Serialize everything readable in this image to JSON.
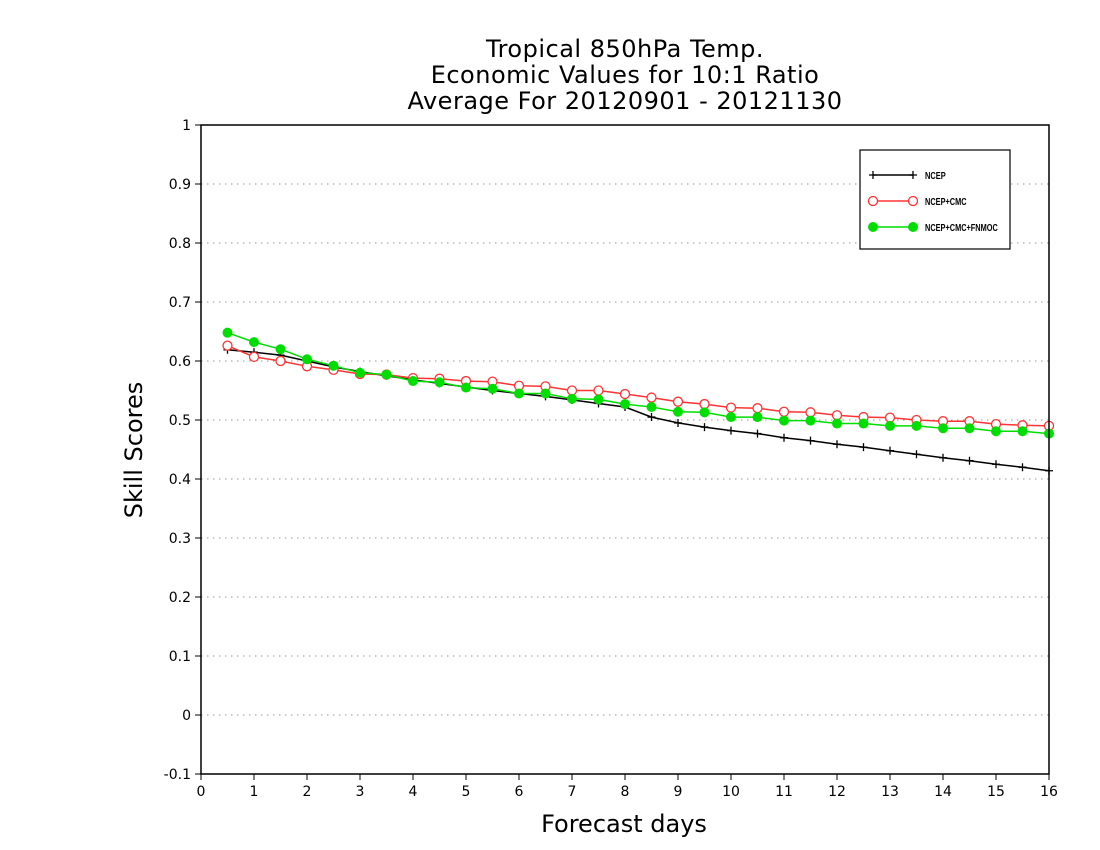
{
  "title_lines": [
    "Tropical 850hPa Temp.",
    "Economic Values for 10:1 Ratio",
    "Average For 20120901 - 20121130"
  ],
  "chart_data": {
    "type": "line",
    "title": "Tropical 850hPa Temp. Economic Values for 10:1 Ratio Average For 20120901 - 20121130",
    "xlabel": "Forecast days",
    "ylabel": "Skill Scores",
    "xlim": [
      0,
      16
    ],
    "ylim": [
      -0.1,
      1
    ],
    "x_ticks": [
      "0",
      "1",
      "2",
      "3",
      "4",
      "5",
      "6",
      "7",
      "8",
      "9",
      "10",
      "11",
      "12",
      "13",
      "14",
      "15",
      "16"
    ],
    "y_ticks": [
      "-0.1",
      "0",
      "0.1",
      "0.2",
      "0.3",
      "0.4",
      "0.5",
      "0.6",
      "0.7",
      "0.8",
      "0.9",
      "1"
    ],
    "grid": "horizontal dotted",
    "legend_position": "top-right",
    "x": [
      0.5,
      1,
      1.5,
      2,
      2.5,
      3,
      3.5,
      4,
      4.5,
      5,
      5.5,
      6,
      6.5,
      7,
      7.5,
      8,
      8.5,
      9,
      9.5,
      10,
      10.5,
      11,
      11.5,
      12,
      12.5,
      13,
      13.5,
      14,
      14.5,
      15,
      15.5,
      16
    ],
    "series": [
      {
        "name": "NCEP",
        "color": "#000000",
        "marker": "plus",
        "values": [
          0.619,
          0.615,
          0.61,
          0.6,
          0.59,
          0.582,
          0.575,
          0.568,
          0.562,
          0.556,
          0.55,
          0.545,
          0.54,
          0.534,
          0.528,
          0.522,
          0.505,
          0.495,
          0.488,
          0.482,
          0.477,
          0.47,
          0.465,
          0.459,
          0.454,
          0.448,
          0.442,
          0.436,
          0.431,
          0.425,
          0.42,
          0.414
        ]
      },
      {
        "name": "NCEP+CMC",
        "color": "#ff3333",
        "marker": "open-circle",
        "values": [
          0.626,
          0.607,
          0.6,
          0.591,
          0.585,
          0.578,
          0.577,
          0.571,
          0.57,
          0.566,
          0.565,
          0.558,
          0.557,
          0.55,
          0.55,
          0.544,
          0.538,
          0.531,
          0.527,
          0.521,
          0.52,
          0.514,
          0.513,
          0.508,
          0.505,
          0.504,
          0.5,
          0.498,
          0.498,
          0.493,
          0.491,
          0.49
        ]
      },
      {
        "name": "NCEP+CMC+FNMOC",
        "color": "#00dd00",
        "marker": "filled-circle",
        "values": [
          0.648,
          0.632,
          0.62,
          0.603,
          0.592,
          0.58,
          0.577,
          0.566,
          0.564,
          0.555,
          0.553,
          0.545,
          0.545,
          0.536,
          0.535,
          0.527,
          0.522,
          0.514,
          0.513,
          0.505,
          0.505,
          0.499,
          0.499,
          0.494,
          0.494,
          0.49,
          0.49,
          0.486,
          0.486,
          0.481,
          0.481,
          0.477
        ]
      }
    ]
  }
}
